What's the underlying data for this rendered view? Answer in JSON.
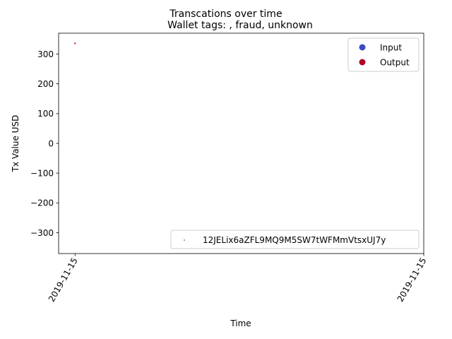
{
  "chart_data": {
    "type": "scatter",
    "suptitle": "Transcations over time",
    "title": "Wallet tags: , fraud, unknown",
    "xlabel": "Time",
    "ylabel": "Tx Value USD",
    "ylim": [
      -370,
      370
    ],
    "yticks": [
      -300,
      -200,
      -100,
      0,
      100,
      200,
      300
    ],
    "ytick_labels": [
      "−300",
      "−200",
      "−100",
      "0",
      "100",
      "200",
      "300"
    ],
    "xlim": [
      0,
      1
    ],
    "xticks": [
      0.045,
      1.0
    ],
    "xtick_labels": [
      "2019-11-15",
      "2019-11-15"
    ],
    "grid": false,
    "series": [
      {
        "name": "Input",
        "color": "#3b4cc0",
        "points": []
      },
      {
        "name": "Output",
        "color": "#b40426",
        "points": [
          {
            "x": 0.045,
            "y": 336
          }
        ]
      },
      {
        "name": "12JELix6aZFL9MQ9M5SW7tWFMmVtsxUJ7y",
        "color": "#1f77b4",
        "points": []
      }
    ],
    "legend_upper": {
      "placement": "upper-right",
      "entries": [
        "Input",
        "Output"
      ]
    },
    "legend_lower": {
      "placement": "lower-right",
      "entries": [
        "12JELix6aZFL9MQ9M5SW7tWFMmVtsxUJ7y"
      ]
    }
  }
}
